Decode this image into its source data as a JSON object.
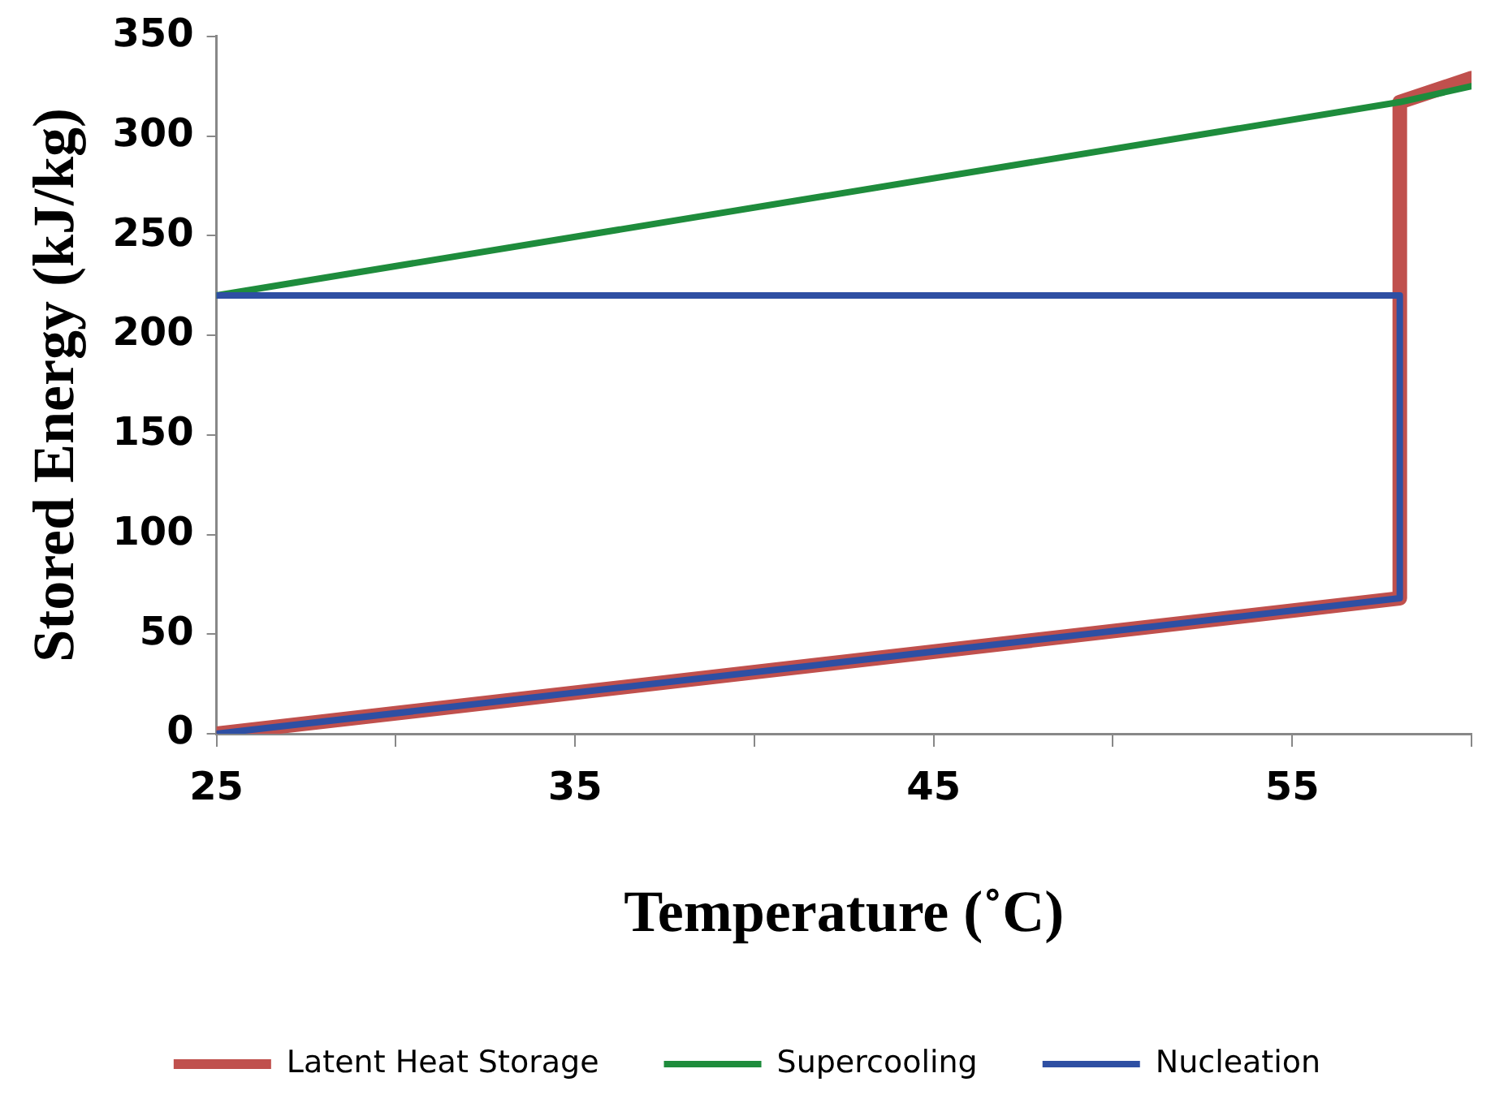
{
  "chart_data": {
    "type": "line",
    "xlabel": "Temperature (˚C)",
    "ylabel": "Stored Energy (kJ/kg)",
    "xlim": [
      25,
      60
    ],
    "xticks": [
      25,
      {
        "value": 30,
        "label": null
      },
      35,
      {
        "value": 40,
        "label": null
      },
      45,
      {
        "value": 50,
        "label": null
      },
      55,
      {
        "value": 60,
        "label": null
      }
    ],
    "ylim": [
      0,
      350
    ],
    "yticks": [
      0,
      50,
      100,
      150,
      200,
      250,
      300,
      350
    ],
    "grid": false,
    "legend": "bottom",
    "marker": "none",
    "line_style": "solid",
    "series": [
      {
        "name": "Latent Heat Storage",
        "color": "#c0504d",
        "x": [
          25,
          58,
          58,
          60
        ],
        "values": [
          0,
          68,
          317,
          329
        ]
      },
      {
        "name": "Supercooling",
        "color": "#1e8c3c",
        "x": [
          25,
          58,
          60
        ],
        "values": [
          220,
          317,
          325
        ]
      },
      {
        "name": "Nucleation",
        "color": "#2e4fa3",
        "x": [
          25,
          58,
          58,
          25
        ],
        "values": [
          220,
          220,
          68,
          0
        ]
      }
    ]
  }
}
